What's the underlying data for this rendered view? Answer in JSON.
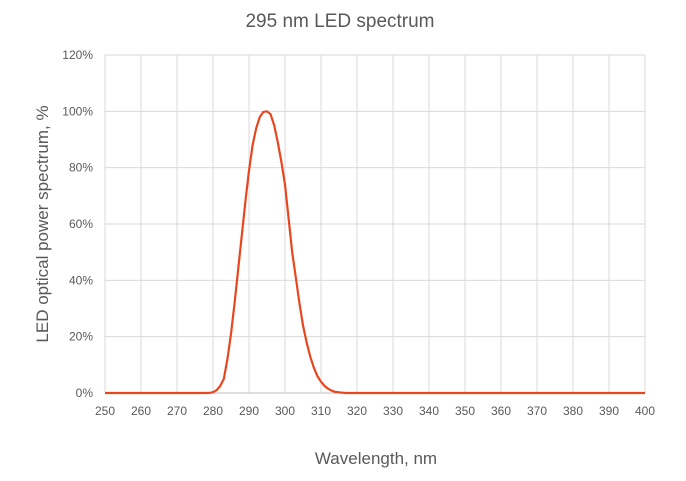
{
  "chart_data": {
    "type": "line",
    "title": "295 nm LED spectrum",
    "xlabel": "Wavelength, nm",
    "ylabel": "LED optical power spectrum, %",
    "xlim": [
      250,
      400
    ],
    "ylim": [
      0,
      120
    ],
    "x_ticks": [
      250,
      260,
      270,
      280,
      290,
      300,
      310,
      320,
      330,
      340,
      350,
      360,
      370,
      380,
      390,
      400
    ],
    "y_ticks": [
      0,
      20,
      40,
      60,
      80,
      100,
      120
    ],
    "y_tick_format": "%",
    "grid": true,
    "legend": "none",
    "line_color": "#e8461e",
    "series": [
      {
        "x": [
          250,
          260,
          270,
          278,
          279,
          280,
          281,
          282,
          283,
          284,
          285,
          286,
          287,
          288,
          289,
          290,
          291,
          292,
          293,
          294,
          295,
          296,
          297,
          298,
          299,
          300,
          301,
          302,
          303,
          304,
          305,
          306,
          307,
          308,
          309,
          310,
          311,
          312,
          313,
          314,
          315,
          316,
          317,
          320,
          330,
          340,
          350,
          360,
          370,
          380,
          390,
          400
        ],
        "y": [
          0,
          0,
          0,
          0,
          0.05,
          0.3,
          1,
          2.5,
          5,
          12,
          21,
          32,
          44,
          56,
          68,
          79,
          88,
          94,
          98,
          99.8,
          100,
          99,
          95,
          89,
          82,
          74,
          62,
          50,
          41,
          32,
          24,
          18,
          13,
          9,
          6,
          4,
          2.5,
          1.5,
          0.8,
          0.4,
          0.2,
          0.1,
          0,
          0,
          0,
          0,
          0,
          0,
          0,
          0,
          0,
          0
        ]
      }
    ]
  }
}
